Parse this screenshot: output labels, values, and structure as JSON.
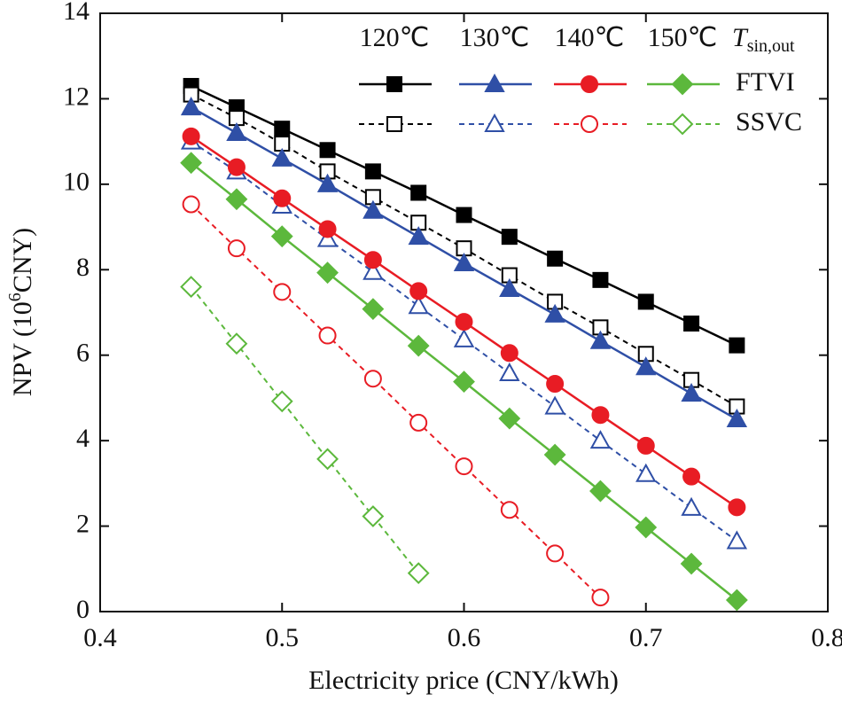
{
  "chart_data": {
    "type": "line",
    "xlabel": "Electricity price (CNY/kWh)",
    "ylabel_parts": [
      "NPV (10",
      "6",
      "CNY)"
    ],
    "legend_title": "T",
    "legend_title_sub": "sin,out",
    "x": [
      0.45,
      0.475,
      0.5,
      0.525,
      0.55,
      0.575,
      0.6,
      0.625,
      0.65,
      0.675,
      0.7,
      0.725,
      0.75
    ],
    "schemes": [
      {
        "name": "FTVI",
        "filled": true,
        "dashed": false
      },
      {
        "name": "SSVC",
        "filled": false,
        "dashed": true
      }
    ],
    "series": [
      {
        "name": "120℃",
        "color": "#000000",
        "marker": "square",
        "values": [
          [
            12.3,
            11.8,
            11.3,
            10.8,
            10.3,
            9.8,
            9.28,
            8.77,
            8.26,
            7.76,
            7.25,
            6.74,
            6.23
          ],
          [
            12.1,
            11.55,
            10.95,
            10.3,
            9.7,
            9.1,
            8.5,
            7.87,
            7.25,
            6.65,
            6.03,
            5.42,
            4.8
          ]
        ]
      },
      {
        "name": "130℃",
        "color": "#2f4fa6",
        "marker": "triangle",
        "values": [
          [
            11.8,
            11.2,
            10.6,
            10.0,
            9.38,
            8.77,
            8.15,
            7.55,
            6.95,
            6.33,
            5.72,
            5.1,
            4.5
          ],
          [
            11.0,
            10.3,
            9.5,
            8.72,
            7.95,
            7.15,
            6.37,
            5.58,
            4.8,
            4.0,
            3.22,
            2.43,
            1.65
          ]
        ]
      },
      {
        "name": "140℃",
        "color": "#e81c24",
        "marker": "circle",
        "values": [
          [
            11.12,
            10.4,
            9.67,
            8.95,
            8.23,
            7.5,
            6.78,
            6.05,
            5.33,
            4.6,
            3.88,
            3.16,
            2.44
          ],
          [
            9.53,
            8.5,
            7.48,
            6.46,
            5.45,
            4.42,
            3.4,
            2.38,
            1.36,
            0.33,
            null,
            null,
            null
          ]
        ]
      },
      {
        "name": "150℃",
        "color": "#5cb83c",
        "marker": "diamond",
        "values": [
          [
            10.5,
            9.65,
            8.78,
            7.93,
            7.08,
            6.22,
            5.38,
            4.52,
            3.67,
            2.82,
            1.97,
            1.12,
            0.27
          ],
          [
            7.6,
            6.27,
            4.92,
            3.57,
            2.23,
            0.9,
            null,
            null,
            null,
            null,
            null,
            null,
            null
          ]
        ]
      }
    ],
    "xlim": [
      0.4,
      0.8
    ],
    "xticks": [
      0.4,
      0.5,
      0.6,
      0.7,
      0.8
    ],
    "ylim": [
      0,
      14
    ],
    "yticks": [
      0,
      2,
      4,
      6,
      8,
      10,
      12,
      14
    ]
  }
}
